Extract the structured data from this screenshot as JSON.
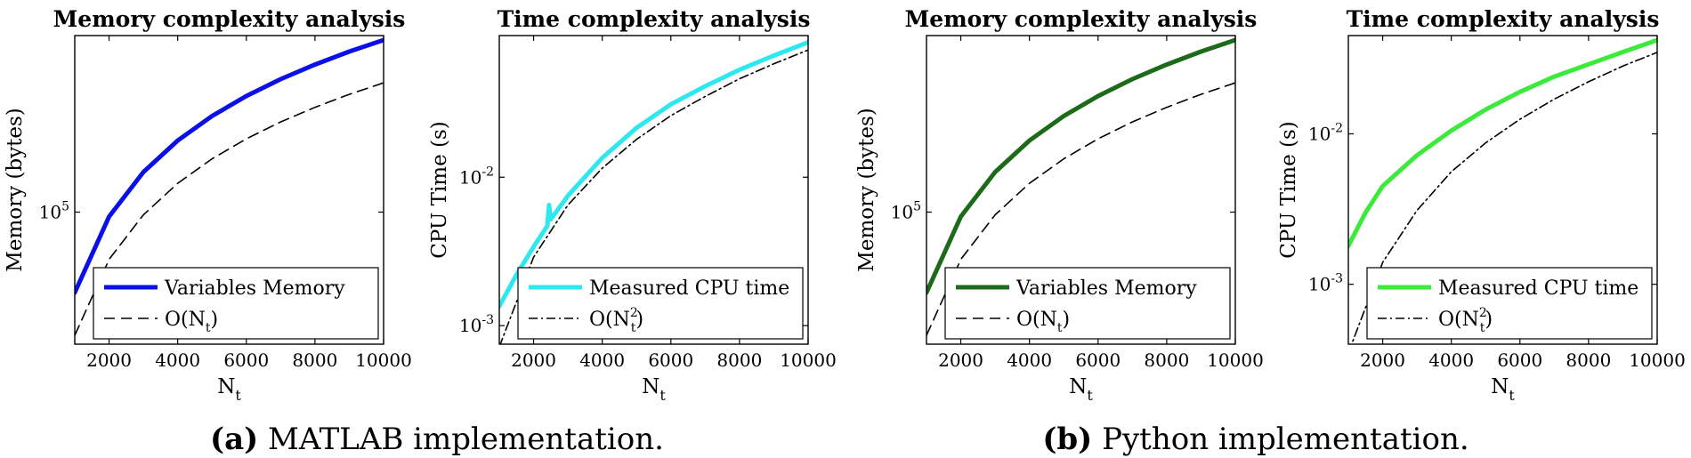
{
  "chart_data": [
    {
      "id": "a1",
      "type": "line",
      "title": "Memory complexity analysis",
      "xlabel": "N",
      "xlabel_sub": "t",
      "ylabel": "Memory (bytes)",
      "xlim": [
        1000,
        10000
      ],
      "ylim": [
        30000,
        500000
      ],
      "yscale": "log",
      "xticks": [
        "2000",
        "4000",
        "6000",
        "8000",
        "10000"
      ],
      "yticks": [
        {
          "value": 100000,
          "base": "10",
          "exp": "5"
        }
      ],
      "legend_position": "bottom-right",
      "series": [
        {
          "name": "Variables Memory",
          "sub": "",
          "sup": "",
          "tail": "",
          "color": "#0a10e6",
          "dash": "",
          "width": 5,
          "x": [
            1000,
            2000,
            3000,
            4000,
            5000,
            6000,
            7000,
            8000,
            9000,
            10000
          ],
          "y": [
            48000,
            96000,
            144000,
            192000,
            240000,
            288000,
            336000,
            384000,
            432000,
            480000
          ]
        },
        {
          "name": "O(N",
          "sub": "t",
          "sup": "",
          "tail": ")",
          "color": "#000000",
          "dash": "12,7",
          "width": 1.6,
          "x": [
            1000,
            2000,
            3000,
            4000,
            5000,
            6000,
            7000,
            8000,
            9000,
            10000
          ],
          "y": [
            32500,
            65000,
            97500,
            130000,
            162500,
            195000,
            227500,
            260000,
            292500,
            325000
          ]
        }
      ]
    },
    {
      "id": "a2",
      "type": "line",
      "title": "Time complexity analysis",
      "xlabel": "N",
      "xlabel_sub": "t",
      "ylabel": "CPU Time (s)",
      "xlim": [
        1000,
        10000
      ],
      "ylim": [
        0.00075,
        0.09
      ],
      "yscale": "log",
      "xticks": [
        "2000",
        "4000",
        "6000",
        "8000",
        "10000"
      ],
      "yticks": [
        {
          "value": 0.001,
          "base": "10",
          "exp": "-3"
        },
        {
          "value": 0.01,
          "base": "10",
          "exp": "-2"
        }
      ],
      "legend_position": "bottom-right",
      "series": [
        {
          "name": "Measured CPU time",
          "sub": "",
          "sup": "",
          "tail": "",
          "color": "#2ee8f0",
          "dash": "",
          "width": 5,
          "x": [
            1000,
            1500,
            2000,
            2400,
            2450,
            2500,
            3000,
            4000,
            5000,
            6000,
            7000,
            8000,
            9000,
            10000
          ],
          "y": [
            0.00135,
            0.0022,
            0.0034,
            0.0047,
            0.0065,
            0.0052,
            0.0075,
            0.0135,
            0.0215,
            0.031,
            0.041,
            0.053,
            0.066,
            0.081
          ]
        },
        {
          "name": "O(N",
          "sub": "t",
          "sup": "2",
          "tail": ")",
          "color": "#000000",
          "dash": "10,4,2,4",
          "width": 1.6,
          "x": [
            1000,
            2000,
            3000,
            4000,
            5000,
            6000,
            7000,
            8000,
            9000,
            10000
          ],
          "y": [
            0.00072,
            0.0029,
            0.0065,
            0.0115,
            0.018,
            0.026,
            0.035,
            0.046,
            0.058,
            0.072
          ]
        }
      ]
    },
    {
      "id": "b1",
      "type": "line",
      "title": "Memory complexity analysis",
      "xlabel": "N",
      "xlabel_sub": "t",
      "ylabel": "Memory (bytes)",
      "xlim": [
        1000,
        10000
      ],
      "ylim": [
        30000,
        500000
      ],
      "yscale": "log",
      "xticks": [
        "2000",
        "4000",
        "6000",
        "8000",
        "10000"
      ],
      "yticks": [
        {
          "value": 100000,
          "base": "10",
          "exp": "5"
        }
      ],
      "legend_position": "bottom-right",
      "series": [
        {
          "name": "Variables Memory",
          "sub": "",
          "sup": "",
          "tail": "",
          "color": "#1d6b1a",
          "dash": "",
          "width": 5,
          "x": [
            1000,
            2000,
            3000,
            4000,
            5000,
            6000,
            7000,
            8000,
            9000,
            10000
          ],
          "y": [
            48000,
            96000,
            144000,
            192000,
            240000,
            288000,
            336000,
            384000,
            432000,
            480000
          ]
        },
        {
          "name": "O(N",
          "sub": "t",
          "sup": "",
          "tail": ")",
          "color": "#000000",
          "dash": "12,7",
          "width": 1.6,
          "x": [
            1000,
            2000,
            3000,
            4000,
            5000,
            6000,
            7000,
            8000,
            9000,
            10000
          ],
          "y": [
            32500,
            65000,
            97500,
            130000,
            162500,
            195000,
            227500,
            260000,
            292500,
            325000
          ]
        }
      ]
    },
    {
      "id": "b2",
      "type": "line",
      "title": "Time complexity analysis",
      "xlabel": "N",
      "xlabel_sub": "t",
      "ylabel": "CPU Time (s)",
      "xlim": [
        1000,
        10000
      ],
      "ylim": [
        0.0004,
        0.045
      ],
      "yscale": "log",
      "xticks": [
        "2000",
        "4000",
        "6000",
        "8000",
        "10000"
      ],
      "yticks": [
        {
          "value": 0.001,
          "base": "10",
          "exp": "-3"
        },
        {
          "value": 0.01,
          "base": "10",
          "exp": "-2"
        }
      ],
      "legend_position": "bottom-right",
      "series": [
        {
          "name": "Measured CPU time",
          "sub": "",
          "sup": "",
          "tail": "",
          "color": "#3bea3b",
          "dash": "",
          "width": 5,
          "x": [
            1000,
            1500,
            2000,
            3000,
            4000,
            5000,
            6000,
            7000,
            8000,
            9000,
            10000
          ],
          "y": [
            0.0018,
            0.003,
            0.0045,
            0.0072,
            0.0105,
            0.0145,
            0.019,
            0.024,
            0.029,
            0.035,
            0.042
          ]
        },
        {
          "name": "O(N",
          "sub": "t",
          "sup": "2",
          "tail": ")",
          "color": "#000000",
          "dash": "10,4,2,4",
          "width": 1.6,
          "x": [
            1000,
            2000,
            3000,
            4000,
            5000,
            6000,
            7000,
            8000,
            9000,
            10000
          ],
          "y": [
            0.00035,
            0.0014,
            0.0031,
            0.0056,
            0.0087,
            0.0125,
            0.017,
            0.0222,
            0.0282,
            0.0348
          ]
        }
      ]
    }
  ],
  "captions": {
    "a": {
      "label": "(a)",
      "text": " MATLAB implementation."
    },
    "b": {
      "label": "(b)",
      "text": " Python implementation."
    }
  }
}
